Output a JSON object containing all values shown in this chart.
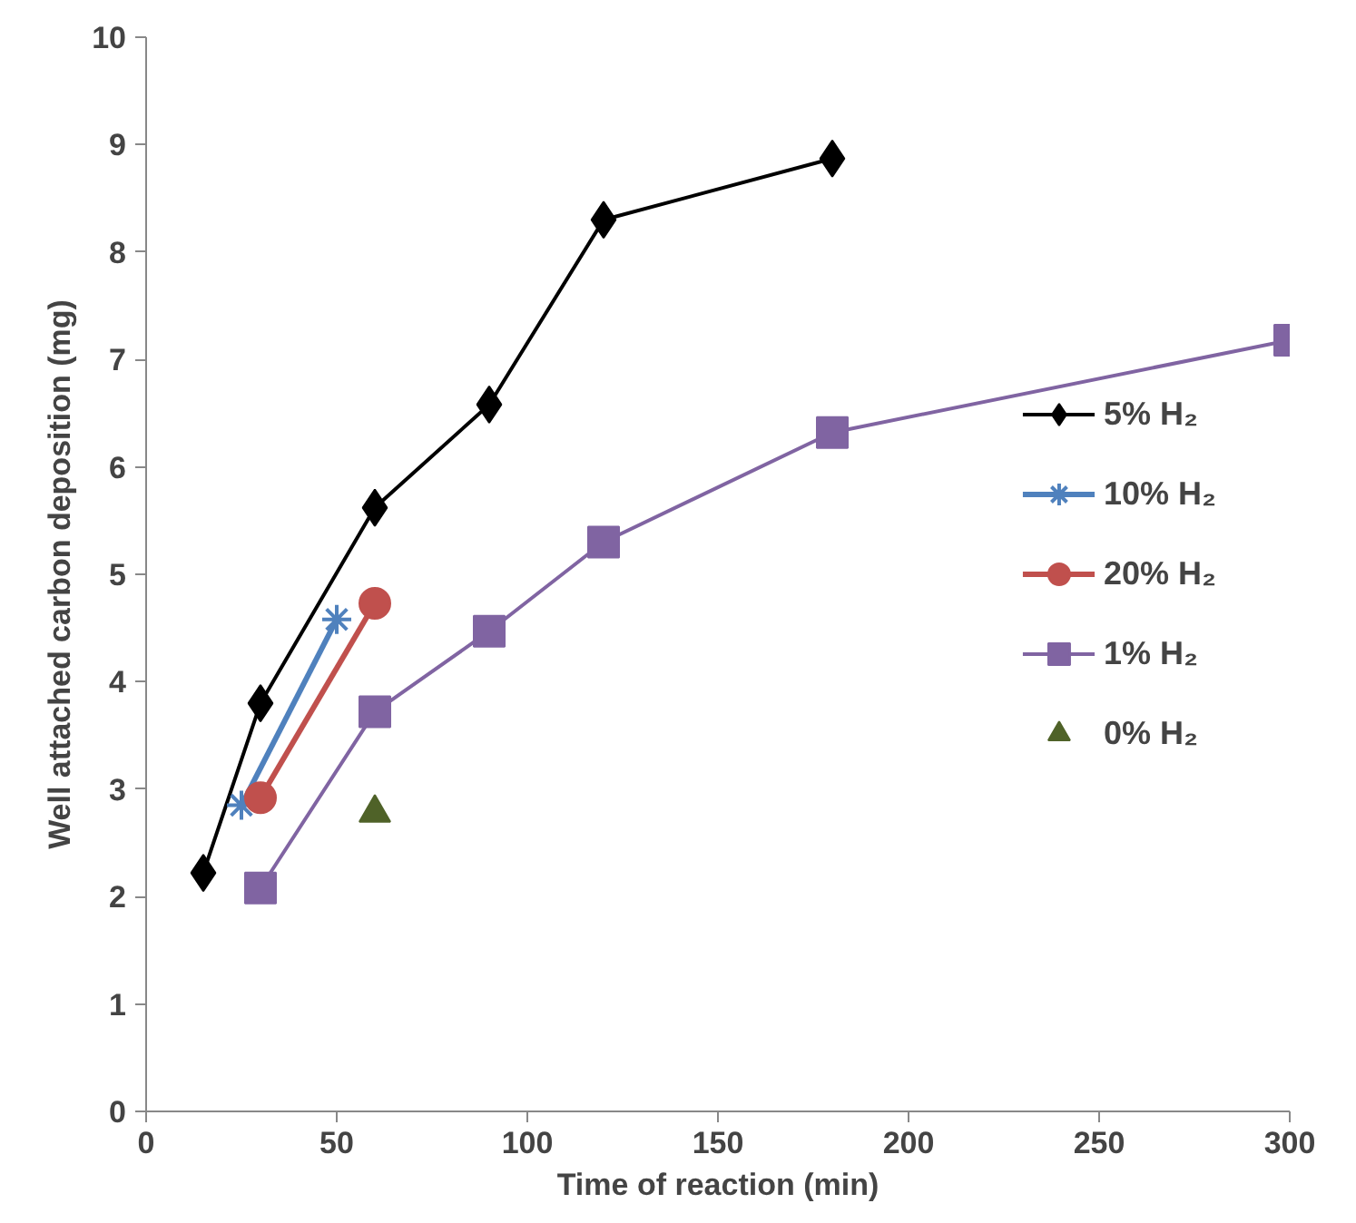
{
  "chart_data": {
    "type": "line",
    "xlabel": "Time of reaction (min)",
    "ylabel": "Well attached carbon deposition (mg)",
    "xlim": [
      0,
      300
    ],
    "ylim": [
      0,
      10
    ],
    "xticks": [
      0,
      50,
      100,
      150,
      200,
      250,
      300
    ],
    "yticks": [
      0,
      1,
      2,
      3,
      4,
      5,
      6,
      7,
      8,
      9,
      10
    ],
    "grid": false,
    "legend": "right",
    "series": [
      {
        "name": "5% H₂",
        "color": "#000000",
        "marker": "diamond",
        "x": [
          15,
          30,
          60,
          90,
          120,
          180
        ],
        "values": [
          2.22,
          3.8,
          5.62,
          6.58,
          8.3,
          8.87
        ]
      },
      {
        "name": "10% H₂",
        "color": "#4f81bd",
        "marker": "cross",
        "x": [
          25,
          50
        ],
        "values": [
          2.85,
          4.58
        ]
      },
      {
        "name": "20% H₂",
        "color": "#c0504d",
        "marker": "circle",
        "x": [
          30,
          60
        ],
        "values": [
          2.92,
          4.73
        ]
      },
      {
        "name": "1% H₂",
        "color": "#8064a2",
        "marker": "square",
        "x": [
          30,
          60,
          90,
          120,
          180,
          300
        ],
        "values": [
          2.08,
          3.72,
          4.47,
          5.3,
          6.32,
          7.18
        ]
      },
      {
        "name": "0% H₂",
        "color": "#4f6228",
        "marker": "triangle",
        "type": "scatter",
        "x": [
          60
        ],
        "values": [
          2.78
        ]
      }
    ]
  }
}
